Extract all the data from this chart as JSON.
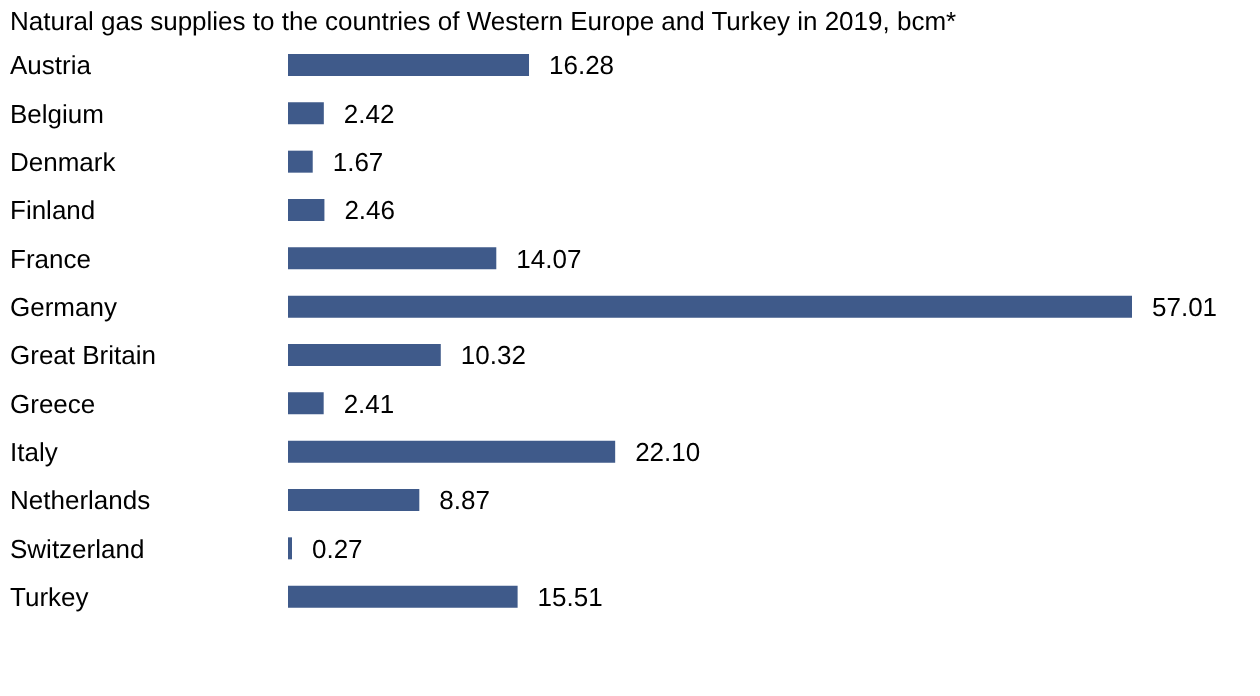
{
  "chart_data": {
    "type": "bar",
    "orientation": "horizontal",
    "title": "Natural gas supplies to the countries of Western Europe and Turkey in 2019, bcm*",
    "categories": [
      "Austria",
      "Belgium",
      "Denmark",
      "Finland",
      "France",
      "Germany",
      "Great Britain",
      "Greece",
      "Italy",
      "Netherlands",
      "Switzerland",
      "Turkey"
    ],
    "values": [
      16.28,
      2.42,
      1.67,
      2.46,
      14.07,
      57.01,
      10.32,
      2.41,
      22.1,
      8.87,
      0.27,
      15.51
    ],
    "value_labels": [
      "16.28",
      "2.42",
      "1.67",
      "2.46",
      "14.07",
      "57.01",
      "10.32",
      "2.41",
      "22.10",
      "8.87",
      "0.27",
      "15.51"
    ],
    "color": "#3f5a8a",
    "tick_labels": "y"
  }
}
